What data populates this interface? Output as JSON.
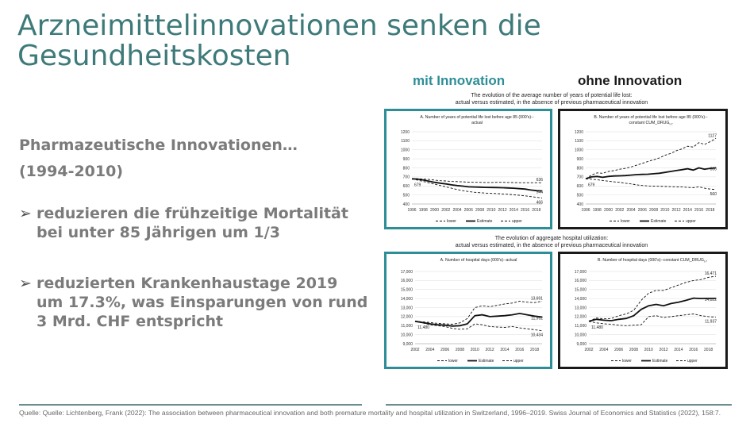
{
  "slide": {
    "title": "Arzneimittelinnovationen senken die Gesundheitskosten",
    "subtitle_line1": "Pharmazeutische Innovationen…",
    "subtitle_line2": "(1994-2010)",
    "bullet1": "reduzieren die frühzeitige Mortalität bei unter 85 Jährigen um 1/3",
    "bullet2": "reduzierten Krankenhaustage 2019 um 17.3%, was  Einsparungen von rund 3 Mrd. CHF entspricht",
    "label_with": "mit Innovation",
    "label_without": "ohne Innovation",
    "caption_top_1": "The evolution of the average number of years of potential life lost:",
    "caption_top_2": "actual versus estimated, in the absence of previous pharmaceutical innovation",
    "caption_bottom_1": "The evolution of aggregate hospital utilization:",
    "caption_bottom_2": "actual versus estimated, in the absence of previous pharmaceutical innovation",
    "source": "Quelle: Quelle: Lichtenberg, Frank (2022): The association between pharmaceutical innovation and both premature mortality and hospital utilization in Switzerland, 1996–2019. Swiss Journal of Economics and Statistics (2022), 158:7."
  },
  "colors": {
    "accent": "#2e8e97",
    "title": "#3f7a7a",
    "dark": "#1a1a1a"
  },
  "legend": {
    "lower": "lower",
    "estimate": "Estimate",
    "upper": "upper"
  },
  "chart_data": [
    {
      "id": "A1",
      "type": "line",
      "title": "A. Number of years of potential life lost before age 85 (000's)--",
      "title2": "actual",
      "x": [
        1996,
        1997,
        1998,
        1999,
        2000,
        2001,
        2002,
        2003,
        2004,
        2005,
        2006,
        2007,
        2008,
        2009,
        2010,
        2011,
        2012,
        2013,
        2014,
        2015,
        2016,
        2017,
        2018,
        2019
      ],
      "xticks": [
        "1996",
        "1998",
        "2000",
        "2002",
        "2004",
        "2006",
        "2008",
        "2010",
        "2012",
        "2014",
        "2016",
        "2018"
      ],
      "ylim": [
        400,
        1200
      ],
      "yticks": [
        "400",
        "500",
        "600",
        "700",
        "800",
        "900",
        "1000",
        "1100",
        "1200"
      ],
      "series": [
        {
          "name": "lower",
          "values": [
            679,
            665,
            650,
            635,
            620,
            605,
            590,
            575,
            560,
            548,
            538,
            530,
            525,
            520,
            518,
            515,
            512,
            508,
            502,
            497,
            490,
            482,
            474,
            466
          ]
        },
        {
          "name": "Estimate",
          "values": [
            679,
            676,
            666,
            652,
            640,
            630,
            622,
            612,
            604,
            598,
            590,
            588,
            586,
            584,
            583,
            582,
            580,
            578,
            575,
            570,
            565,
            555,
            548,
            544
          ]
        },
        {
          "name": "upper",
          "values": [
            679,
            680,
            676,
            672,
            665,
            658,
            655,
            650,
            648,
            645,
            642,
            640,
            640,
            638,
            638,
            640,
            640,
            638,
            637,
            636,
            636,
            636,
            636,
            636
          ]
        }
      ],
      "annotations": [
        "679",
        "636",
        "544",
        "466"
      ]
    },
    {
      "id": "B1",
      "type": "line",
      "title": "B. Number of years of potential life lost before age 85 (000's)--",
      "title2": "constant CUM_DRUG",
      "title2_sub": "t-7",
      "x": [
        1996,
        1997,
        1998,
        1999,
        2000,
        2001,
        2002,
        2003,
        2004,
        2005,
        2006,
        2007,
        2008,
        2009,
        2010,
        2011,
        2012,
        2013,
        2014,
        2015,
        2016,
        2017,
        2018,
        2019
      ],
      "xticks": [
        "1996",
        "1998",
        "2000",
        "2002",
        "2004",
        "2006",
        "2008",
        "2010",
        "2012",
        "2014",
        "2016",
        "2018"
      ],
      "ylim": [
        400,
        1200
      ],
      "yticks": [
        "400",
        "500",
        "600",
        "700",
        "800",
        "900",
        "1000",
        "1100",
        "1200"
      ],
      "series": [
        {
          "name": "lower",
          "values": [
            679,
            675,
            668,
            660,
            652,
            645,
            640,
            630,
            622,
            612,
            605,
            600,
            598,
            596,
            594,
            592,
            590,
            588,
            584,
            580,
            590,
            575,
            565,
            560
          ]
        },
        {
          "name": "Estimate",
          "values": [
            679,
            700,
            705,
            695,
            705,
            710,
            712,
            715,
            720,
            725,
            728,
            730,
            735,
            740,
            750,
            760,
            770,
            780,
            790,
            775,
            800,
            785,
            795,
            800
          ]
        },
        {
          "name": "upper",
          "values": [
            679,
            720,
            745,
            740,
            760,
            770,
            785,
            795,
            810,
            830,
            850,
            870,
            890,
            910,
            940,
            960,
            990,
            1010,
            1040,
            1030,
            1080,
            1060,
            1090,
            1127
          ]
        }
      ],
      "annotations": [
        "679",
        "1127",
        "800",
        "560"
      ]
    },
    {
      "id": "A2",
      "type": "line",
      "title": "A. Number of hospital days (000's)--actual",
      "x": [
        2002,
        2003,
        2004,
        2005,
        2006,
        2007,
        2008,
        2009,
        2010,
        2011,
        2012,
        2013,
        2014,
        2015,
        2016,
        2017,
        2018,
        2019
      ],
      "xticks": [
        "2002",
        "2004",
        "2006",
        "2008",
        "2010",
        "2012",
        "2014",
        "2016",
        "2018"
      ],
      "ylim": [
        9000,
        17000
      ],
      "yticks": [
        "9,000",
        "10,000",
        "11,000",
        "12,000",
        "13,000",
        "14,000",
        "15,000",
        "16,000",
        "17,000"
      ],
      "series": [
        {
          "name": "lower",
          "values": [
            11480,
            11300,
            11100,
            11000,
            10900,
            10700,
            10600,
            10650,
            11200,
            11100,
            10900,
            10850,
            10800,
            10900,
            10750,
            10650,
            10550,
            10434
          ]
        },
        {
          "name": "Estimate",
          "values": [
            11480,
            11350,
            11200,
            11100,
            11050,
            10950,
            11000,
            11200,
            12100,
            12200,
            12000,
            12050,
            12100,
            12200,
            12350,
            12200,
            12050,
            11952
          ]
        },
        {
          "name": "upper",
          "values": [
            11480,
            11420,
            11350,
            11250,
            11200,
            11150,
            11300,
            11800,
            13000,
            13200,
            13100,
            13250,
            13400,
            13500,
            13700,
            13600,
            13550,
            13691
          ]
        }
      ],
      "annotations": [
        "11,480",
        "13,691",
        "11,952",
        "10,434"
      ]
    },
    {
      "id": "B2",
      "type": "line",
      "title": "B. Number of hospital days (000's)--constant CUM_DRUG",
      "title_sub": "t-7",
      "x": [
        2002,
        2003,
        2004,
        2005,
        2006,
        2007,
        2008,
        2009,
        2010,
        2011,
        2012,
        2013,
        2014,
        2015,
        2016,
        2017,
        2018,
        2019
      ],
      "xticks": [
        "2002",
        "2004",
        "2006",
        "2008",
        "2010",
        "2012",
        "2014",
        "2016",
        "2018"
      ],
      "ylim": [
        9000,
        17000
      ],
      "yticks": [
        "9,000",
        "10,000",
        "11,000",
        "12,000",
        "13,000",
        "14,000",
        "15,000",
        "16,000",
        "17,000"
      ],
      "series": [
        {
          "name": "lower",
          "values": [
            11480,
            11300,
            11200,
            11150,
            11050,
            11000,
            11050,
            11100,
            12000,
            12100,
            11900,
            12000,
            12100,
            12200,
            12300,
            12100,
            12000,
            11937
          ]
        },
        {
          "name": "Estimate",
          "values": [
            11480,
            11700,
            11600,
            11550,
            11700,
            11800,
            12100,
            12800,
            13200,
            13350,
            13200,
            13450,
            13600,
            13800,
            14050,
            14000,
            14010,
            14022
          ]
        },
        {
          "name": "upper",
          "values": [
            11480,
            11850,
            11750,
            11800,
            12100,
            12300,
            12700,
            13800,
            14600,
            14900,
            14900,
            15200,
            15500,
            15800,
            16000,
            16100,
            16350,
            16471
          ]
        }
      ],
      "annotations": [
        "11,480",
        "16,471",
        "14,022",
        "11,937"
      ]
    }
  ]
}
